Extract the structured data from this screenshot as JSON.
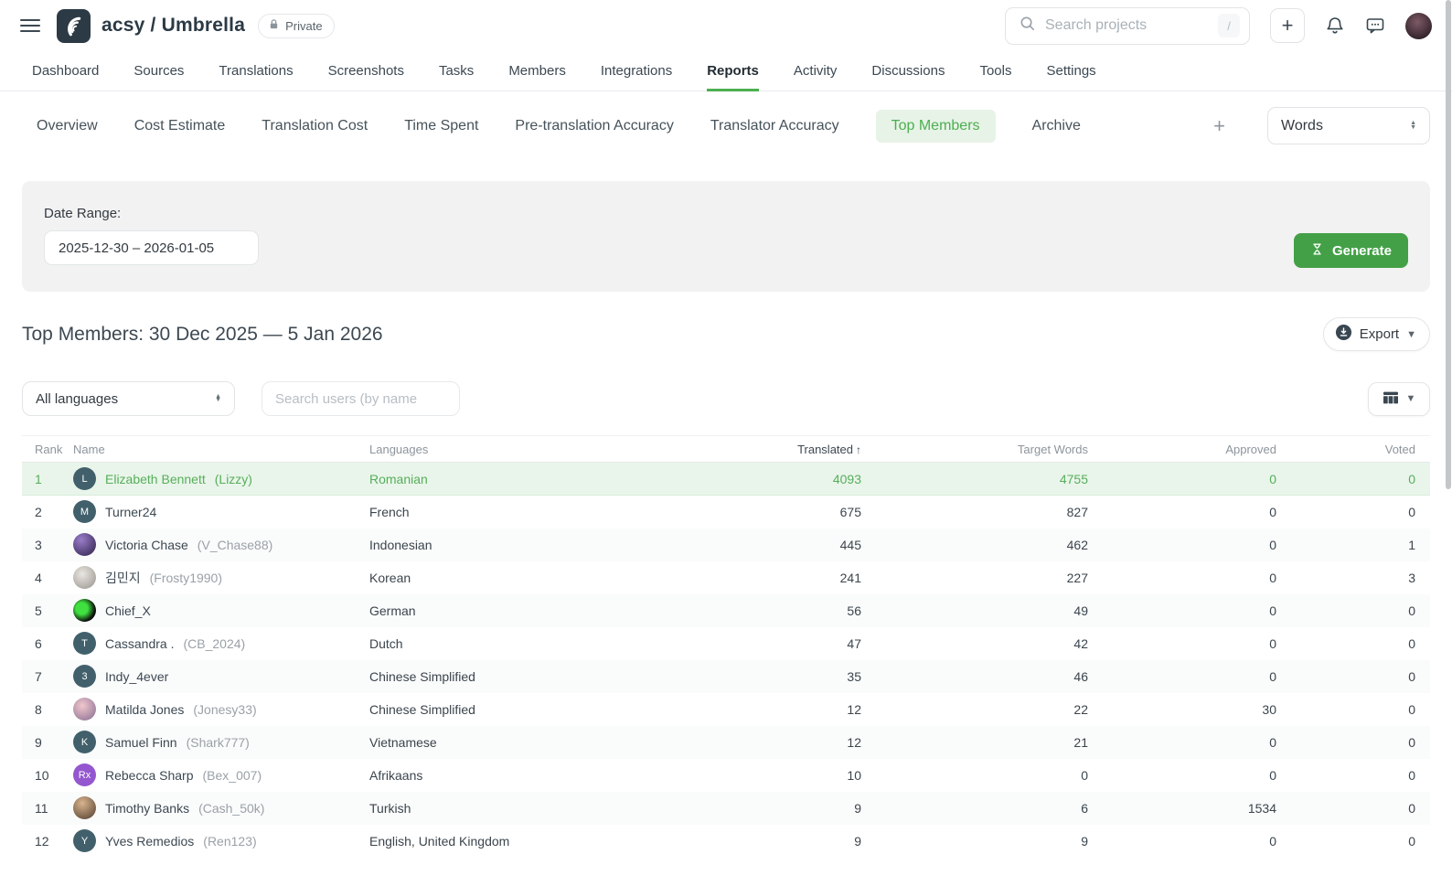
{
  "header": {
    "title": "acsy / Umbrella",
    "private_badge": "Private",
    "search_placeholder": "Search projects",
    "search_shortcut": "/"
  },
  "nav": {
    "items": [
      {
        "label": "Dashboard",
        "active": false
      },
      {
        "label": "Sources",
        "active": false
      },
      {
        "label": "Translations",
        "active": false
      },
      {
        "label": "Screenshots",
        "active": false
      },
      {
        "label": "Tasks",
        "active": false
      },
      {
        "label": "Members",
        "active": false
      },
      {
        "label": "Integrations",
        "active": false
      },
      {
        "label": "Reports",
        "active": true
      },
      {
        "label": "Activity",
        "active": false
      },
      {
        "label": "Discussions",
        "active": false
      },
      {
        "label": "Tools",
        "active": false
      },
      {
        "label": "Settings",
        "active": false
      }
    ]
  },
  "report_tabs": {
    "items": [
      {
        "label": "Overview",
        "active": false
      },
      {
        "label": "Cost Estimate",
        "active": false
      },
      {
        "label": "Translation Cost",
        "active": false
      },
      {
        "label": "Time Spent",
        "active": false
      },
      {
        "label": "Pre-translation Accuracy",
        "active": false
      },
      {
        "label": "Translator Accuracy",
        "active": false
      },
      {
        "label": "Top Members",
        "active": true
      },
      {
        "label": "Archive",
        "active": false
      }
    ],
    "add_tab_label": "+",
    "unit_select_value": "Words"
  },
  "date_panel": {
    "label": "Date Range:",
    "value": "2025-12-30 – 2026-01-05",
    "generate_label": "Generate"
  },
  "report": {
    "title": "Top Members: 30 Dec 2025 — 5 Jan 2026",
    "export_label": "Export"
  },
  "table_filters": {
    "language_select_value": "All languages",
    "user_search_placeholder": "Search users (by name"
  },
  "table": {
    "sort_arrow": "↑",
    "columns": [
      {
        "key": "rank",
        "label": "Rank",
        "align": "left",
        "sorted": false
      },
      {
        "key": "name",
        "label": "Name",
        "align": "left",
        "sorted": false
      },
      {
        "key": "languages",
        "label": "Languages",
        "align": "left",
        "sorted": false
      },
      {
        "key": "translated",
        "label": "Translated",
        "align": "right",
        "sorted": true
      },
      {
        "key": "target_words",
        "label": "Target Words",
        "align": "right",
        "sorted": false
      },
      {
        "key": "approved",
        "label": "Approved",
        "align": "right",
        "sorted": false
      },
      {
        "key": "voted",
        "label": "Voted",
        "align": "right",
        "sorted": false
      }
    ],
    "rows": [
      {
        "rank": 1,
        "name": "Elizabeth Bennett",
        "username": "(Lizzy)",
        "languages": "Romanian",
        "translated": 4093,
        "target_words": 4755,
        "approved": 0,
        "voted": 0,
        "highlighted": true,
        "avatar": {
          "type": "initial",
          "label": "L",
          "bg": "#41606c"
        }
      },
      {
        "rank": 2,
        "name": "Turner24",
        "username": "",
        "languages": "French",
        "translated": 675,
        "target_words": 827,
        "approved": 0,
        "voted": 0,
        "highlighted": false,
        "avatar": {
          "type": "initial",
          "label": "M",
          "bg": "#41606c"
        }
      },
      {
        "rank": 3,
        "name": "Victoria Chase",
        "username": "(V_Chase88)",
        "languages": "Indonesian",
        "translated": 445,
        "target_words": 462,
        "approved": 0,
        "voted": 1,
        "highlighted": false,
        "avatar": {
          "type": "photo",
          "label": "",
          "bg": "radial-gradient(circle at 35% 30%, #9a7cc9, #4a3a6b 72%)"
        }
      },
      {
        "rank": 4,
        "name": "김민지",
        "username": "(Frosty1990)",
        "languages": "Korean",
        "translated": 241,
        "target_words": 227,
        "approved": 0,
        "voted": 3,
        "highlighted": false,
        "avatar": {
          "type": "photo",
          "label": "",
          "bg": "radial-gradient(circle at 40% 35%, #eae6e1, #a9a49e 78%)"
        }
      },
      {
        "rank": 5,
        "name": "Chief_X",
        "username": "",
        "languages": "German",
        "translated": 56,
        "target_words": 49,
        "approved": 0,
        "voted": 0,
        "highlighted": false,
        "avatar": {
          "type": "photo",
          "label": "",
          "bg": "radial-gradient(circle at 38% 42%, #3fe03f 0 30%, #0b0d0b 68%)"
        }
      },
      {
        "rank": 6,
        "name": "Cassandra .",
        "username": "(CB_2024)",
        "languages": "Dutch",
        "translated": 47,
        "target_words": 42,
        "approved": 0,
        "voted": 0,
        "highlighted": false,
        "avatar": {
          "type": "initial",
          "label": "T",
          "bg": "#41606c"
        }
      },
      {
        "rank": 7,
        "name": "Indy_4ever",
        "username": "",
        "languages": "Chinese Simplified",
        "translated": 35,
        "target_words": 46,
        "approved": 0,
        "voted": 0,
        "highlighted": false,
        "avatar": {
          "type": "initial",
          "label": "3",
          "bg": "#41606c"
        }
      },
      {
        "rank": 8,
        "name": "Matilda Jones",
        "username": "(Jonesy33)",
        "languages": "Chinese Simplified",
        "translated": 12,
        "target_words": 22,
        "approved": 30,
        "voted": 0,
        "highlighted": false,
        "avatar": {
          "type": "photo",
          "label": "",
          "bg": "radial-gradient(circle at 40% 35%, #f0c7cd, #9d7f9d 78%)"
        }
      },
      {
        "rank": 9,
        "name": "Samuel Finn",
        "username": "(Shark777)",
        "languages": "Vietnamese",
        "translated": 12,
        "target_words": 21,
        "approved": 0,
        "voted": 0,
        "highlighted": false,
        "avatar": {
          "type": "initial",
          "label": "K",
          "bg": "#41606c"
        }
      },
      {
        "rank": 10,
        "name": "Rebecca Sharp",
        "username": "(Bex_007)",
        "languages": "Afrikaans",
        "translated": 10,
        "target_words": 0,
        "approved": 0,
        "voted": 0,
        "highlighted": false,
        "avatar": {
          "type": "initial",
          "label": "Rx",
          "bg": "#9457cf"
        }
      },
      {
        "rank": 11,
        "name": "Timothy Banks",
        "username": "(Cash_50k)",
        "languages": "Turkish",
        "translated": 9,
        "target_words": 6,
        "approved": 1534,
        "voted": 0,
        "highlighted": false,
        "avatar": {
          "type": "photo",
          "label": "",
          "bg": "radial-gradient(circle at 40% 30%, #d9b48e, #6d5643 78%)"
        }
      },
      {
        "rank": 12,
        "name": "Yves Remedios",
        "username": "(Ren123)",
        "languages": "English, United Kingdom",
        "translated": 9,
        "target_words": 9,
        "approved": 0,
        "voted": 0,
        "highlighted": false,
        "avatar": {
          "type": "initial",
          "label": "Y",
          "bg": "#41606c"
        }
      }
    ]
  },
  "colors": {
    "accent_green": "#4caf50",
    "button_green": "#43a047",
    "active_tab_bg": "#e7f3e7",
    "highlight_row_bg": "#e9f5ea",
    "header_avatar_bg": "radial-gradient(circle at 45% 35%, #7d5a64, #33232c 75%)"
  }
}
